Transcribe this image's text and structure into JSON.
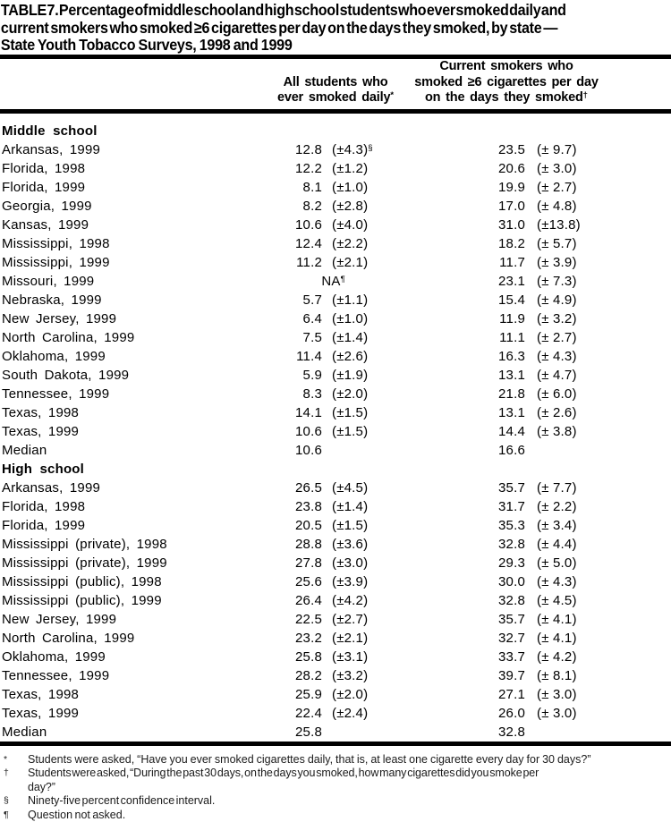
{
  "document": {
    "title_lines": [
      "TABLE 7. Percentage of middle school and high school students who ever smoked daily and",
      "current smokers who smoked ≥6 cigarettes per day on the days they smoked, by state —",
      "State Youth Tobacco Surveys, 1998 and 1999"
    ]
  },
  "table": {
    "column_headers": [
      {
        "name": "all-students-ever-smoked-daily",
        "lines": [
          "All students who",
          "ever smoked daily*"
        ]
      },
      {
        "name": "current-smokers-6-cigarettes",
        "lines": [
          "Current smokers who",
          "smoked ≥6 cigarettes per day",
          "on the days they smoked†"
        ]
      }
    ],
    "sections": [
      {
        "label": "Middle school",
        "rows": [
          {
            "state": "Arkansas, 1999",
            "value1": "12.8",
            "ci1": "(±4.3)§",
            "value2": "23.5",
            "ci2": "(± 9.7)"
          },
          {
            "state": "Florida, 1998",
            "value1": "12.2",
            "ci1": "(±1.2)",
            "value2": "20.6",
            "ci2": "(± 3.0)"
          },
          {
            "state": "Florida, 1999",
            "value1": "8.1",
            "ci1": "(±1.0)",
            "value2": "19.9",
            "ci2": "(± 2.7)"
          },
          {
            "state": "Georgia, 1999",
            "value1": "8.2",
            "ci1": "(±2.8)",
            "value2": "17.0",
            "ci2": "(± 4.8)"
          },
          {
            "state": "Kansas, 1999",
            "value1": "10.6",
            "ci1": "(±4.0)",
            "value2": "31.0",
            "ci2": "(±13.8)"
          },
          {
            "state": "Mississippi, 1998",
            "value1": "12.4",
            "ci1": "(±2.2)",
            "value2": "18.2",
            "ci2": "(± 5.7)"
          },
          {
            "state": "Mississippi, 1999",
            "value1": "11.2",
            "ci1": "(±2.1)",
            "value2": "11.7",
            "ci2": "(± 3.9)"
          },
          {
            "state": "Missouri, 1999",
            "na1": "NA¶",
            "value2": "23.1",
            "ci2": "(± 7.3)"
          },
          {
            "state": "Nebraska, 1999",
            "value1": "5.7",
            "ci1": "(±1.1)",
            "value2": "15.4",
            "ci2": "(± 4.9)"
          },
          {
            "state": "New Jersey, 1999",
            "value1": "6.4",
            "ci1": "(±1.0)",
            "value2": "11.9",
            "ci2": "(± 3.2)"
          },
          {
            "state": "North Carolina, 1999",
            "value1": "7.5",
            "ci1": "(±1.4)",
            "value2": "11.1",
            "ci2": "(± 2.7)"
          },
          {
            "state": "Oklahoma, 1999",
            "value1": "11.4",
            "ci1": "(±2.6)",
            "value2": "16.3",
            "ci2": "(± 4.3)"
          },
          {
            "state": "South Dakota, 1999",
            "value1": "5.9",
            "ci1": "(±1.9)",
            "value2": "13.1",
            "ci2": "(± 4.7)"
          },
          {
            "state": "Tennessee, 1999",
            "value1": "8.3",
            "ci1": "(±2.0)",
            "value2": "21.8",
            "ci2": "(± 6.0)"
          },
          {
            "state": "Texas, 1998",
            "value1": "14.1",
            "ci1": "(±1.5)",
            "value2": "13.1",
            "ci2": "(± 2.6)"
          },
          {
            "state": "Texas, 1999",
            "value1": "10.6",
            "ci1": "(±1.5)",
            "value2": "14.4",
            "ci2": "(± 3.8)"
          },
          {
            "state": "Median",
            "value1": "10.6",
            "value2": "16.6"
          }
        ]
      },
      {
        "label": "High school",
        "rows": [
          {
            "state": "Arkansas, 1999",
            "value1": "26.5",
            "ci1": "(±4.5)",
            "value2": "35.7",
            "ci2": "(± 7.7)"
          },
          {
            "state": "Florida, 1998",
            "value1": "23.8",
            "ci1": "(±1.4)",
            "value2": "31.7",
            "ci2": "(± 2.2)"
          },
          {
            "state": "Florida, 1999",
            "value1": "20.5",
            "ci1": "(±1.5)",
            "value2": "35.3",
            "ci2": "(± 3.4)"
          },
          {
            "state": "Mississippi (private), 1998",
            "value1": "28.8",
            "ci1": "(±3.6)",
            "value2": "32.8",
            "ci2": "(± 4.4)"
          },
          {
            "state": "Mississippi (private), 1999",
            "value1": "27.8",
            "ci1": "(±3.0)",
            "value2": "29.3",
            "ci2": "(± 5.0)"
          },
          {
            "state": "Mississippi (public), 1998",
            "value1": "25.6",
            "ci1": "(±3.9)",
            "value2": "30.0",
            "ci2": "(± 4.3)"
          },
          {
            "state": "Mississippi (public), 1999",
            "value1": "26.4",
            "ci1": "(±4.2)",
            "value2": "32.8",
            "ci2": "(± 4.5)"
          },
          {
            "state": "New Jersey, 1999",
            "value1": "22.5",
            "ci1": "(±2.7)",
            "value2": "35.7",
            "ci2": "(± 4.1)"
          },
          {
            "state": "North Carolina, 1999",
            "value1": "23.2",
            "ci1": "(±2.1)",
            "value2": "32.7",
            "ci2": "(± 4.1)"
          },
          {
            "state": "Oklahoma, 1999",
            "value1": "25.8",
            "ci1": "(±3.1)",
            "value2": "33.7",
            "ci2": "(± 4.2)"
          },
          {
            "state": "Tennessee, 1999",
            "value1": "28.2",
            "ci1": "(±3.2)",
            "value2": "39.7",
            "ci2": "(± 8.1)"
          },
          {
            "state": "Texas, 1998",
            "value1": "25.9",
            "ci1": "(±2.0)",
            "value2": "27.1",
            "ci2": "(± 3.0)"
          },
          {
            "state": "Texas, 1999",
            "value1": "22.4",
            "ci1": "(±2.4)",
            "value2": "26.0",
            "ci2": "(± 3.0)"
          },
          {
            "state": "Median",
            "value1": "25.8",
            "value2": "32.8"
          }
        ]
      }
    ]
  },
  "footnotes": [
    {
      "marker": "*",
      "text": "Students were asked, “Have you ever smoked cigarettes daily, that is, at least one cigarette every day for 30 days?”"
    },
    {
      "marker": "†",
      "text": "Students were asked, “During the past 30 days, on the days you smoked, how many cigarettes did you smoke per day?”"
    },
    {
      "marker": "§",
      "text": "Ninety-five percent confidence interval."
    },
    {
      "marker": "¶",
      "text": "Question not asked."
    }
  ]
}
